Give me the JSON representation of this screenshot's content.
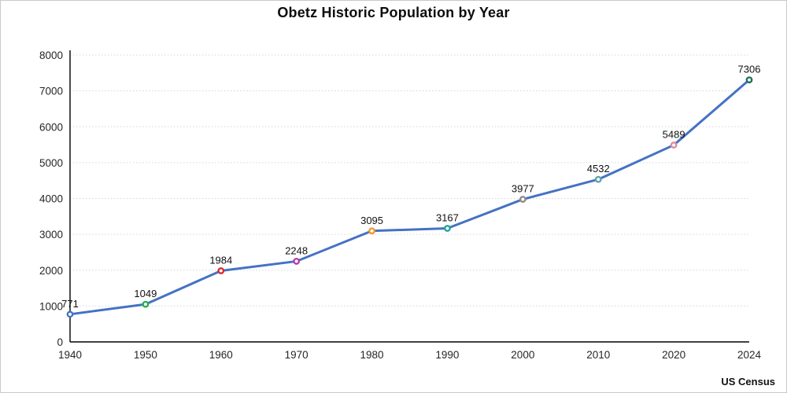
{
  "title": "Obetz Historic Population by Year",
  "source": "US Census",
  "colors": {
    "line": "#4472C4",
    "grid": "#d6d6d6",
    "axis": "#000000",
    "marker_fill": "#ffffff",
    "point_colors": [
      "#4472C4",
      "#21B24B",
      "#D22B2B",
      "#B03FA8",
      "#F0962C",
      "#1FA39B",
      "#8E8A84",
      "#5FA0AC",
      "#E08A9B",
      "#1E6F5C"
    ]
  },
  "chart_data": {
    "type": "line",
    "title": "Obetz Historic Population by Year",
    "categories": [
      "1940",
      "1950",
      "1960",
      "1970",
      "1980",
      "1990",
      "2000",
      "2010",
      "2020",
      "2024"
    ],
    "series": [
      {
        "name": "Population",
        "values": [
          771,
          1049,
          1984,
          2248,
          3095,
          3167,
          3977,
          4532,
          5489,
          7306
        ]
      }
    ],
    "data_labels": [
      "771",
      "1049",
      "1984",
      "2248",
      "3095",
      "3167",
      "3977",
      "4532",
      "5489",
      "7306"
    ],
    "xlabel": "",
    "ylabel": "",
    "ylim": [
      0,
      8000
    ],
    "yticks": [
      0,
      1000,
      2000,
      3000,
      4000,
      5000,
      6000,
      7000,
      8000
    ],
    "grid": "horizontal-dotted",
    "legend": "none",
    "annotation": "US Census"
  }
}
